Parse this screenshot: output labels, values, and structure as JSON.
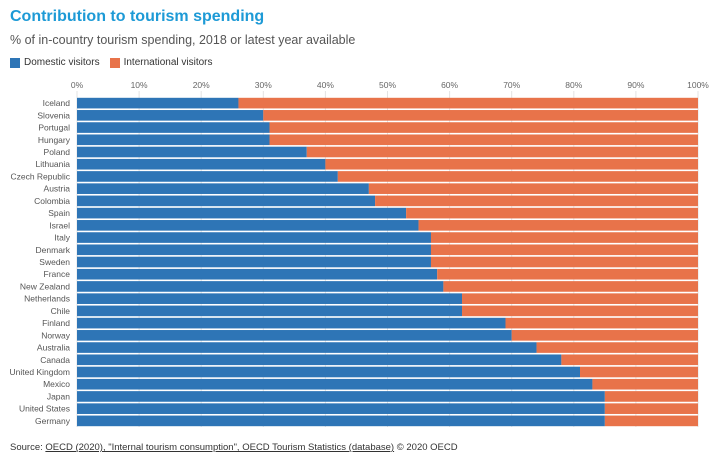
{
  "header": {
    "title": "Contribution to tourism spending",
    "subtitle": "% of in-country tourism spending, 2018 or latest year available"
  },
  "legend": [
    {
      "label": "Domestic visitors",
      "color": "#2e75b6"
    },
    {
      "label": "International visitors",
      "color": "#e8734a"
    }
  ],
  "footer": {
    "source_prefix": "Source: ",
    "source_link1": "OECD (2020), \"Internal tourism consumption\", OECD Tourism Statistics (database)",
    "source_suffix": " © 2020 OECD"
  },
  "chart_data": {
    "type": "bar",
    "orientation": "horizontal",
    "stacked": true,
    "categories": [
      "Iceland",
      "Slovenia",
      "Portugal",
      "Hungary",
      "Poland",
      "Lithuania",
      "Czech Republic",
      "Austria",
      "Colombia",
      "Spain",
      "Israel",
      "Italy",
      "Denmark",
      "Sweden",
      "France",
      "New Zealand",
      "Netherlands",
      "Chile",
      "Finland",
      "Norway",
      "Australia",
      "Canada",
      "United Kingdom",
      "Mexico",
      "Japan",
      "United States",
      "Germany"
    ],
    "series": [
      {
        "name": "Domestic visitors",
        "values": [
          26,
          30,
          31,
          31,
          37,
          40,
          42,
          47,
          48,
          53,
          55,
          57,
          57,
          57,
          58,
          59,
          62,
          62,
          69,
          70,
          74,
          78,
          81,
          83,
          85,
          85,
          85
        ]
      },
      {
        "name": "International visitors",
        "values": [
          74,
          70,
          69,
          69,
          63,
          60,
          58,
          53,
          52,
          47,
          45,
          43,
          43,
          43,
          42,
          41,
          38,
          38,
          31,
          30,
          26,
          22,
          19,
          17,
          15,
          15,
          15
        ]
      }
    ],
    "xlim": [
      0,
      100
    ],
    "xticks": [
      "0%",
      "10%",
      "20%",
      "30%",
      "40%",
      "50%",
      "60%",
      "70%",
      "80%",
      "90%",
      "100%"
    ],
    "grid": true,
    "legend_position": "top-left"
  }
}
